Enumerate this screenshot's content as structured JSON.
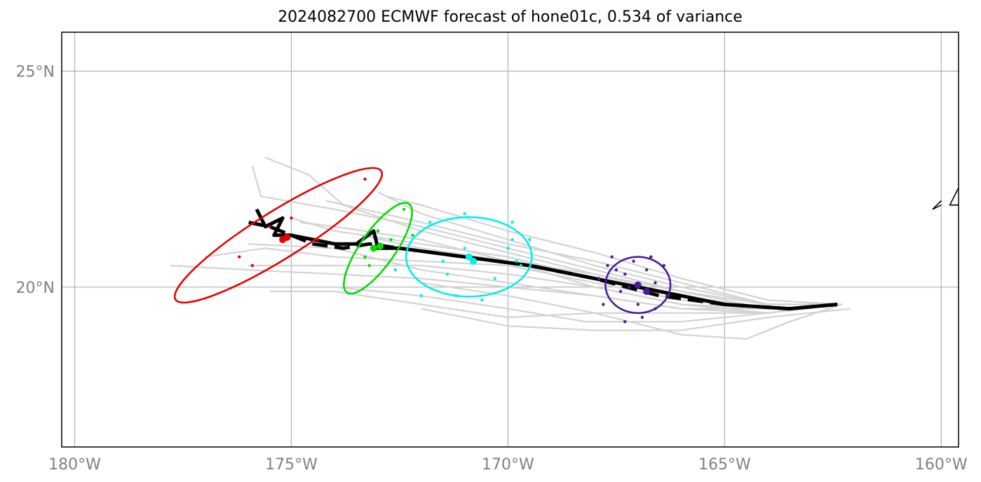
{
  "title": "2024082700 ECMWF forecast of hone01c, 0.534 of variance",
  "map": {
    "lon_range": [
      -180.3,
      -159.6
    ],
    "lat_range": [
      16.3,
      25.9
    ],
    "x_ticks": [
      {
        "value": -180,
        "label": "180°W"
      },
      {
        "value": -175,
        "label": "175°W"
      },
      {
        "value": -170,
        "label": "170°W"
      },
      {
        "value": -165,
        "label": "165°W"
      },
      {
        "value": -160,
        "label": "160°W"
      }
    ],
    "y_ticks": [
      {
        "value": 20,
        "label": "20°N"
      },
      {
        "value": 25,
        "label": "25°N"
      }
    ],
    "grid": true
  },
  "colors": {
    "ensemble": "#d3d3d3",
    "mean_track": "#000000",
    "gridline": "#b0b0b0",
    "tick_label": "#808080",
    "clusters": [
      "#e50000",
      "#00dd00",
      "#00eeee",
      "#4b1aa0"
    ]
  },
  "chart_data": {
    "type": "map",
    "mean_track": [
      [
        -162.4,
        19.6
      ],
      [
        -163.5,
        19.5
      ],
      [
        -165,
        19.6
      ],
      [
        -166.5,
        19.9
      ],
      [
        -168,
        20.2
      ],
      [
        -169.5,
        20.5
      ],
      [
        -171,
        20.7
      ],
      [
        -172.5,
        20.9
      ],
      [
        -173,
        20.9
      ],
      [
        -173.1,
        21.3
      ],
      [
        -173.5,
        21.0
      ],
      [
        -174,
        21.0
      ],
      [
        -174.5,
        21.1
      ],
      [
        -175,
        21.2
      ],
      [
        -175.4,
        21.2
      ],
      [
        -175.2,
        21.6
      ],
      [
        -175.6,
        21.4
      ],
      [
        -175.8,
        21.8
      ]
    ],
    "control_track": [
      [
        -162.4,
        19.6
      ],
      [
        -163.5,
        19.5
      ],
      [
        -165,
        19.6
      ],
      [
        -166.5,
        19.8
      ],
      [
        -168,
        20.2
      ],
      [
        -169.5,
        20.5
      ],
      [
        -171,
        20.7
      ],
      [
        -172.5,
        20.9
      ],
      [
        -173.2,
        21.0
      ],
      [
        -173.8,
        20.9
      ],
      [
        -174.5,
        21.0
      ],
      [
        -175,
        21.2
      ],
      [
        -175.5,
        21.4
      ],
      [
        -176,
        21.5
      ]
    ],
    "ensemble_tracks": [
      [
        [
          -162.3,
          19.6
        ],
        [
          -164,
          19.5
        ],
        [
          -166,
          19.8
        ],
        [
          -168,
          20.3
        ],
        [
          -170,
          20.8
        ],
        [
          -172,
          21.3
        ],
        [
          -173.8,
          21.9
        ],
        [
          -174.6,
          22.6
        ],
        [
          -175.6,
          23.0
        ]
      ],
      [
        [
          -162.3,
          19.6
        ],
        [
          -164,
          19.6
        ],
        [
          -166,
          20.0
        ],
        [
          -168,
          20.5
        ],
        [
          -170,
          21.1
        ],
        [
          -172,
          21.7
        ],
        [
          -173,
          22.2
        ]
      ],
      [
        [
          -162.3,
          19.6
        ],
        [
          -164,
          19.5
        ],
        [
          -166,
          19.9
        ],
        [
          -168,
          20.4
        ],
        [
          -170,
          20.9
        ],
        [
          -172,
          21.4
        ],
        [
          -174,
          21.8
        ],
        [
          -175.7,
          22.1
        ],
        [
          -175.9,
          22.8
        ]
      ],
      [
        [
          -162.3,
          19.6
        ],
        [
          -164,
          19.4
        ],
        [
          -166,
          19.4
        ],
        [
          -168,
          19.4
        ],
        [
          -170,
          19.3
        ],
        [
          -172,
          19.6
        ],
        [
          -174,
          19.9
        ],
        [
          -175.5,
          19.9
        ]
      ],
      [
        [
          -162.3,
          19.6
        ],
        [
          -164,
          19.4
        ],
        [
          -166,
          19.5
        ],
        [
          -168,
          19.8
        ],
        [
          -170,
          20.0
        ],
        [
          -172,
          20.2
        ],
        [
          -174,
          20.3
        ],
        [
          -176,
          20.4
        ],
        [
          -177.8,
          20.5
        ]
      ],
      [
        [
          -162.3,
          19.6
        ],
        [
          -164,
          19.5
        ],
        [
          -166,
          19.7
        ],
        [
          -168,
          20.1
        ],
        [
          -170,
          20.5
        ],
        [
          -172,
          20.6
        ],
        [
          -174,
          20.7
        ],
        [
          -175.6,
          20.9
        ],
        [
          -177,
          20.7
        ]
      ],
      [
        [
          -162.3,
          19.6
        ],
        [
          -164,
          19.5
        ],
        [
          -166,
          19.6
        ],
        [
          -168,
          20.0
        ],
        [
          -170,
          20.3
        ],
        [
          -172,
          20.5
        ],
        [
          -174,
          20.5
        ],
        [
          -176,
          20.5
        ]
      ],
      [
        [
          -162.3,
          19.6
        ],
        [
          -164,
          19.4
        ],
        [
          -166,
          19.2
        ],
        [
          -168.2,
          19.2
        ],
        [
          -170,
          19.5
        ],
        [
          -172,
          19.8
        ],
        [
          -174,
          20.0
        ]
      ],
      [
        [
          -162.3,
          19.6
        ],
        [
          -163.5,
          19.2
        ],
        [
          -164.5,
          18.8
        ],
        [
          -166,
          18.9
        ],
        [
          -168,
          19.4
        ],
        [
          -170,
          19.8
        ],
        [
          -172,
          20.1
        ]
      ],
      [
        [
          -162.3,
          19.6
        ],
        [
          -164,
          19.7
        ],
        [
          -166,
          20.2
        ],
        [
          -168,
          20.8
        ],
        [
          -170,
          21.3
        ],
        [
          -172,
          21.9
        ],
        [
          -172.8,
          22.1
        ]
      ],
      [
        [
          -162.3,
          19.6
        ],
        [
          -164,
          19.5
        ],
        [
          -166,
          19.8
        ],
        [
          -168,
          20.2
        ],
        [
          -170,
          20.7
        ],
        [
          -172,
          21.0
        ],
        [
          -174,
          21.3
        ],
        [
          -175,
          21.6
        ]
      ],
      [
        [
          -162.3,
          19.6
        ],
        [
          -164,
          19.5
        ],
        [
          -166,
          19.5
        ],
        [
          -168,
          19.8
        ],
        [
          -170,
          20.1
        ],
        [
          -172,
          20.4
        ],
        [
          -174,
          20.9
        ],
        [
          -176,
          21.0
        ]
      ],
      [
        [
          -162.3,
          19.6
        ],
        [
          -164,
          19.6
        ],
        [
          -166,
          20.1
        ],
        [
          -168,
          20.6
        ],
        [
          -170,
          21.0
        ],
        [
          -172,
          21.5
        ],
        [
          -174.2,
          22.0
        ]
      ],
      [
        [
          -162.3,
          19.6
        ],
        [
          -164,
          19.4
        ],
        [
          -166,
          19.6
        ],
        [
          -168,
          20.0
        ],
        [
          -170,
          20.6
        ],
        [
          -172,
          21.1
        ],
        [
          -174,
          21.4
        ],
        [
          -174.8,
          21.5
        ]
      ],
      [
        [
          -162.1,
          19.5
        ],
        [
          -164,
          19.3
        ],
        [
          -166,
          19.0
        ],
        [
          -168,
          19.0
        ],
        [
          -170,
          19.1
        ],
        [
          -172,
          19.5
        ]
      ],
      [
        [
          -162.3,
          19.6
        ],
        [
          -164,
          19.6
        ],
        [
          -166,
          19.9
        ],
        [
          -168,
          20.3
        ],
        [
          -170,
          20.6
        ],
        [
          -172,
          20.9
        ],
        [
          -173.4,
          21.2
        ]
      ]
    ],
    "clusters": [
      {
        "color": "#e50000",
        "ellipse": {
          "cx": -175.3,
          "cy": 21.2,
          "rx": 2.8,
          "ry": 0.55,
          "angle_deg": -32
        },
        "points": [
          [
            -175.1,
            21.15
          ],
          [
            -175.2,
            21.1
          ],
          [
            -176.2,
            20.7
          ],
          [
            -175.9,
            20.5
          ],
          [
            -174.4,
            21.1
          ],
          [
            -175.5,
            21.4
          ],
          [
            -173.3,
            22.5
          ],
          [
            -175.0,
            21.6
          ]
        ]
      },
      {
        "color": "#00dd00",
        "ellipse": {
          "cx": -173.0,
          "cy": 20.9,
          "rx": 1.25,
          "ry": 0.4,
          "angle_deg": -55
        },
        "points": [
          [
            -173.1,
            20.9
          ],
          [
            -172.95,
            20.95
          ],
          [
            -173.3,
            20.7
          ],
          [
            -173.2,
            20.5
          ],
          [
            -172.7,
            21.1
          ],
          [
            -172.4,
            21.8
          ],
          [
            -172.2,
            21.2
          ],
          [
            -173.0,
            21.3
          ]
        ]
      },
      {
        "color": "#00eeee",
        "ellipse": {
          "cx": -170.9,
          "cy": 20.7,
          "rx": 1.45,
          "ry": 0.92,
          "angle_deg": 0
        },
        "points": [
          [
            -170.9,
            20.7
          ],
          [
            -170.8,
            20.6
          ],
          [
            -169.8,
            20.6
          ],
          [
            -169.7,
            20.5
          ],
          [
            -171.0,
            21.7
          ],
          [
            -169.9,
            21.5
          ],
          [
            -172.0,
            19.8
          ],
          [
            -171.5,
            20.6
          ],
          [
            -170.3,
            20.2
          ],
          [
            -169.5,
            21.1
          ],
          [
            -172.6,
            20.4
          ],
          [
            -171.2,
            19.8
          ],
          [
            -170.6,
            19.7
          ],
          [
            -171.8,
            21.5
          ],
          [
            -170.0,
            20.9
          ],
          [
            -171.0,
            20.9
          ],
          [
            -169.9,
            21.1
          ],
          [
            -171.4,
            20.3
          ]
        ]
      },
      {
        "color": "#4b1aa0",
        "ellipse": {
          "cx": -167.0,
          "cy": 20.05,
          "rx": 0.75,
          "ry": 0.65,
          "angle_deg": 0
        },
        "points": [
          [
            -167.0,
            20.05
          ],
          [
            -166.8,
            19.9
          ],
          [
            -167.5,
            20.4
          ],
          [
            -167.1,
            20.6
          ],
          [
            -166.6,
            20.1
          ],
          [
            -167.8,
            19.6
          ],
          [
            -166.6,
            19.5
          ],
          [
            -167.3,
            19.2
          ],
          [
            -166.4,
            20.5
          ],
          [
            -167.9,
            20.2
          ],
          [
            -166.9,
            19.3
          ],
          [
            -167.4,
            19.9
          ],
          [
            -167.2,
            20.0
          ],
          [
            -166.3,
            19.8
          ],
          [
            -167.6,
            20.7
          ],
          [
            -166.8,
            20.4
          ],
          [
            -167.0,
            19.6
          ],
          [
            -167.7,
            20.5
          ],
          [
            -166.7,
            20.7
          ],
          [
            -167.3,
            20.3
          ]
        ]
      }
    ],
    "coastline": [
      [
        [
          -160.0,
          21.9
        ],
        [
          -160.2,
          21.8
        ],
        [
          -160.1,
          21.9
        ],
        [
          -160.0,
          22.0
        ]
      ],
      [
        [
          -159.6,
          21.9
        ],
        [
          -159.8,
          21.9
        ],
        [
          -159.6,
          22.3
        ]
      ]
    ]
  }
}
